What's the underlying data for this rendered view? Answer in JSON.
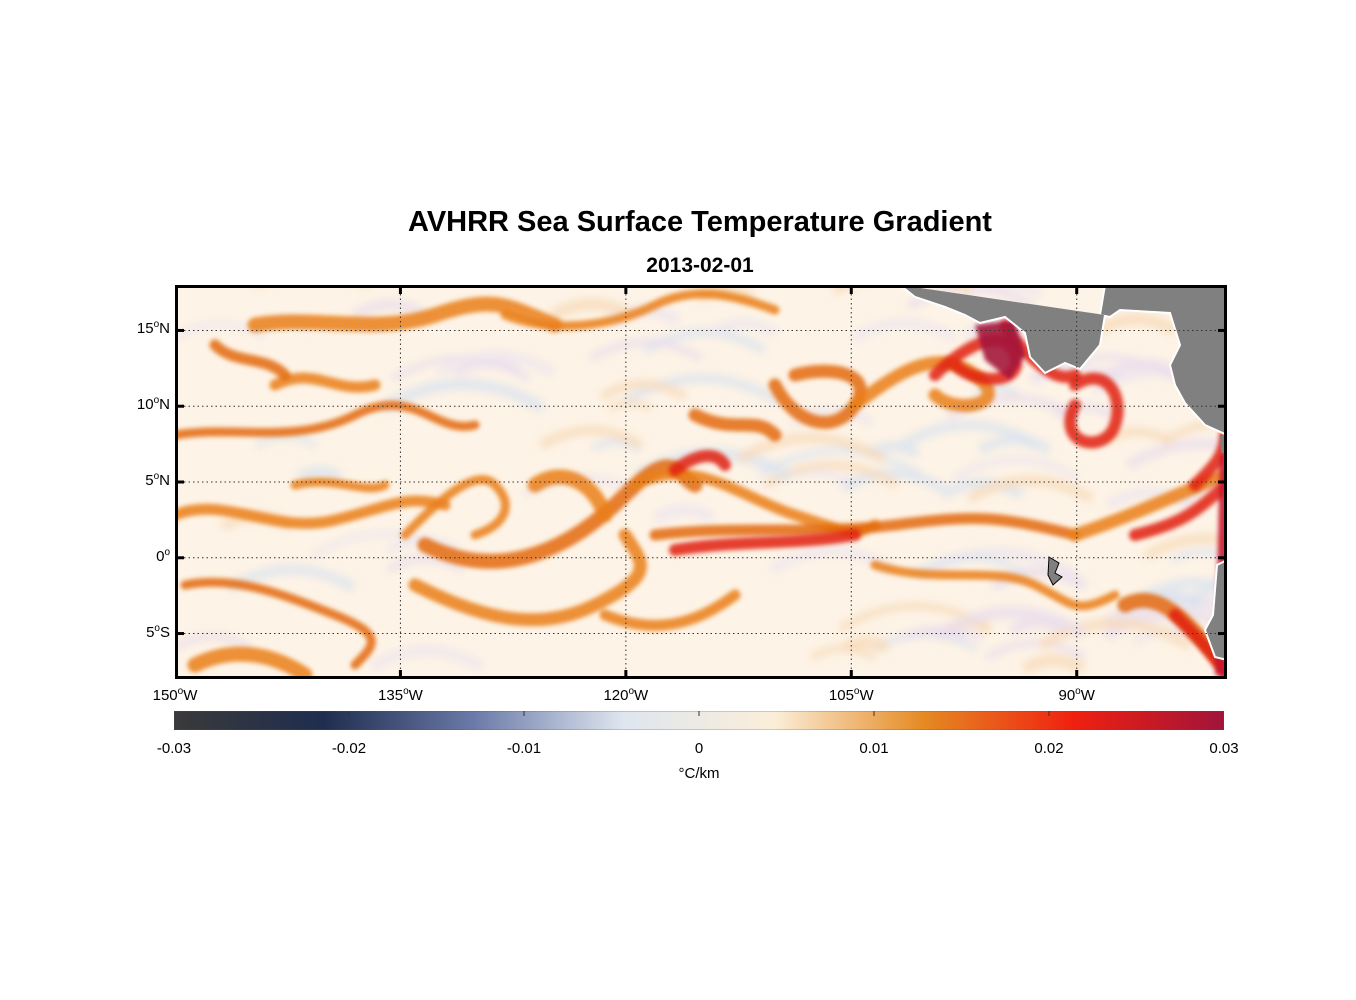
{
  "title": "AVHRR Sea Surface Temperature Gradient",
  "subtitle": "2013-02-01",
  "map": {
    "lon_range": [
      -150,
      -80
    ],
    "lat_range": [
      -8,
      18
    ],
    "lat_ticks": [
      {
        "value": 15,
        "deg": "15",
        "hem": "N"
      },
      {
        "value": 10,
        "deg": "10",
        "hem": "N"
      },
      {
        "value": 5,
        "deg": "5",
        "hem": "N"
      },
      {
        "value": 0,
        "deg": "0",
        "hem": ""
      },
      {
        "value": -5,
        "deg": "5",
        "hem": "S"
      }
    ],
    "lon_ticks": [
      {
        "value": -150,
        "deg": "150",
        "hem": "W"
      },
      {
        "value": -135,
        "deg": "135",
        "hem": "W"
      },
      {
        "value": -120,
        "deg": "120",
        "hem": "W"
      },
      {
        "value": -105,
        "deg": "105",
        "hem": "W"
      },
      {
        "value": -90,
        "deg": "90",
        "hem": "W"
      }
    ],
    "degree_mark": "o",
    "land_color": "#808080",
    "ocean_base_color": "#fdf3e6",
    "grid": "dotted"
  },
  "colorbar": {
    "range": [
      -0.03,
      0.03
    ],
    "ticks": [
      "-0.03",
      "-0.02",
      "-0.01",
      "0",
      "0.01",
      "0.02",
      "0.03"
    ],
    "unit": "°C/km",
    "colors": [
      "#3a3a3a",
      "#1f2d4f",
      "#6b7aa8",
      "#dfe6ef",
      "#fbeed9",
      "#e58a22",
      "#f02010",
      "#a0143a"
    ]
  }
}
